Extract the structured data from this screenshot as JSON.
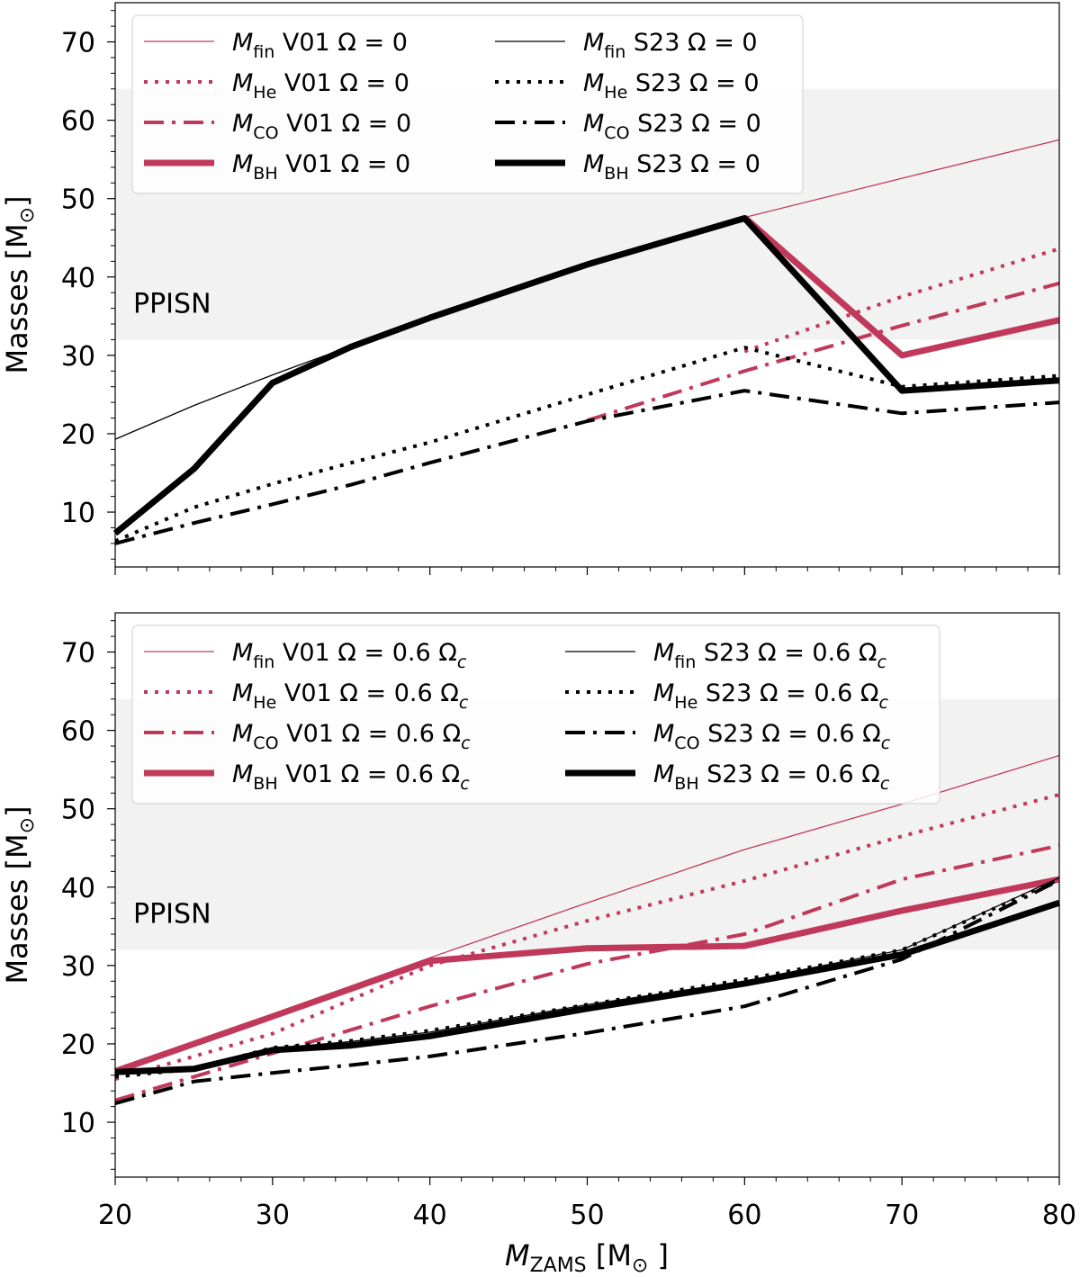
{
  "colors": {
    "v01": "#c0395a",
    "s23": "#000000",
    "band": "#f2f2f2"
  },
  "xaxis": {
    "label_main": "M",
    "label_sub": "ZAMS",
    "label_unit": " [M",
    "label_sun": "⊙",
    "label_close": " ]",
    "ticks": [
      "20",
      "30",
      "40",
      "50",
      "60",
      "70",
      "80"
    ],
    "xlim": [
      20,
      80
    ]
  },
  "chart_data": [
    {
      "type": "line",
      "panel": "top",
      "ylabel_main": "Masses [M",
      "ylabel_sun": "⊙",
      "ylabel_close": "]",
      "ylim": [
        3,
        75
      ],
      "yticks": [
        "10",
        "20",
        "30",
        "40",
        "50",
        "60",
        "70"
      ],
      "ytick_values": [
        10,
        20,
        30,
        40,
        50,
        60,
        70
      ],
      "band": {
        "label": "PPISN",
        "y0": 32,
        "y1": 64
      },
      "series": [
        {
          "name": "M_fin V01 Ω=0",
          "group": "V01",
          "kind": "fin",
          "style": "thin",
          "x": [
            60,
            70,
            80
          ],
          "y": [
            47.6,
            52.6,
            57.5
          ]
        },
        {
          "name": "M_He V01 Ω=0",
          "group": "V01",
          "kind": "He",
          "style": "dotted",
          "x": [
            60,
            70,
            80
          ],
          "y": [
            30.5,
            37.5,
            43.6
          ]
        },
        {
          "name": "M_CO V01 Ω=0",
          "group": "V01",
          "kind": "CO",
          "style": "dashdot",
          "x": [
            50,
            60,
            70,
            80
          ],
          "y": [
            21.7,
            28,
            33.8,
            39.2
          ]
        },
        {
          "name": "M_BH V01 Ω=0",
          "group": "V01",
          "kind": "BH",
          "style": "thick",
          "x": [
            60,
            70,
            80
          ],
          "y": [
            47.6,
            30,
            34.5
          ]
        },
        {
          "name": "M_fin S23 Ω=0",
          "group": "S23",
          "kind": "fin",
          "style": "thin",
          "x": [
            20,
            25,
            30,
            35,
            40,
            50,
            60
          ],
          "y": [
            19.3,
            23.6,
            27.5,
            31.2,
            34.8,
            41.7,
            47.6
          ]
        },
        {
          "name": "M_He S23 Ω=0",
          "group": "S23",
          "kind": "He",
          "style": "dotted",
          "x": [
            20,
            25,
            30,
            35,
            40,
            50,
            60,
            70,
            80
          ],
          "y": [
            6.3,
            10.6,
            13.6,
            16.3,
            18.9,
            25,
            31,
            26,
            27.4
          ]
        },
        {
          "name": "M_CO S23 Ω=0",
          "group": "S23",
          "kind": "CO",
          "style": "dashdot",
          "x": [
            20,
            25,
            30,
            35,
            40,
            50,
            60,
            70,
            80
          ],
          "y": [
            6,
            8.6,
            11,
            13.5,
            16.3,
            21.6,
            25.5,
            22.6,
            24
          ]
        },
        {
          "name": "M_BH S23 Ω=0",
          "group": "S23",
          "kind": "BH",
          "style": "thick",
          "x": [
            20,
            25,
            30,
            35,
            40,
            50,
            60,
            70,
            80
          ],
          "y": [
            7.3,
            15.5,
            26.5,
            31.1,
            34.8,
            41.6,
            47.5,
            25.5,
            26.8
          ]
        }
      ],
      "legend": {
        "left": [
          {
            "sub": "fin",
            "text": "V01 Ω = 0"
          },
          {
            "sub": "He",
            "text": "V01 Ω = 0"
          },
          {
            "sub": "CO",
            "text": "V01 Ω = 0"
          },
          {
            "sub": "BH",
            "text": "V01 Ω = 0"
          }
        ],
        "right": [
          {
            "sub": "fin",
            "text": "S23 Ω = 0"
          },
          {
            "sub": "He",
            "text": "S23 Ω = 0"
          },
          {
            "sub": "CO",
            "text": "S23 Ω = 0"
          },
          {
            "sub": "BH",
            "text": "S23 Ω = 0"
          }
        ]
      }
    },
    {
      "type": "line",
      "panel": "bottom",
      "ylabel_main": "Masses [M",
      "ylabel_sun": "⊙",
      "ylabel_close": "]",
      "ylim": [
        3,
        75
      ],
      "yticks": [
        "10",
        "20",
        "30",
        "40",
        "50",
        "60",
        "70"
      ],
      "ytick_values": [
        10,
        20,
        30,
        40,
        50,
        60,
        70
      ],
      "band": {
        "label": "PPISN",
        "y0": 32,
        "y1": 64
      },
      "series": [
        {
          "name": "M_fin V01 Ω=0.6Ωc",
          "group": "V01",
          "kind": "fin",
          "style": "thin",
          "x": [
            20,
            30,
            40,
            50,
            60,
            70,
            80
          ],
          "y": [
            16.5,
            23.8,
            31,
            38,
            44.8,
            50.6,
            56.8
          ]
        },
        {
          "name": "M_He V01 Ω=0.6Ωc",
          "group": "V01",
          "kind": "He",
          "style": "dotted",
          "x": [
            20,
            30,
            40,
            50,
            60,
            70,
            80
          ],
          "y": [
            15.5,
            21.3,
            30,
            35.7,
            40.8,
            46.5,
            51.8
          ]
        },
        {
          "name": "M_CO V01 Ω=0.6Ωc",
          "group": "V01",
          "kind": "CO",
          "style": "dashdot",
          "x": [
            20,
            30,
            40,
            50,
            60,
            70,
            80
          ],
          "y": [
            12.8,
            18.8,
            24.8,
            30.2,
            34,
            41,
            45.3
          ]
        },
        {
          "name": "M_BH V01 Ω=0.6Ωc",
          "group": "V01",
          "kind": "BH",
          "style": "thick",
          "x": [
            20,
            30,
            40,
            50,
            60,
            70,
            80
          ],
          "y": [
            16.5,
            23.5,
            30.6,
            32.2,
            32.5,
            37,
            41
          ]
        },
        {
          "name": "M_fin S23 Ω=0.6Ωc",
          "group": "S23",
          "kind": "fin",
          "style": "thin",
          "x": [
            20,
            25,
            30,
            35,
            40,
            50,
            60,
            70,
            80
          ],
          "y": [
            16.3,
            17,
            19.4,
            20.3,
            21.5,
            25,
            28,
            32,
            41.2
          ]
        },
        {
          "name": "M_He S23 Ω=0.6Ωc",
          "group": "S23",
          "kind": "He",
          "style": "dotted",
          "x": [
            20,
            25,
            30,
            35,
            40,
            50,
            60,
            70,
            80
          ],
          "y": [
            15.8,
            16.8,
            19.5,
            20.4,
            21.7,
            25,
            28.2,
            32,
            41
          ]
        },
        {
          "name": "M_CO S23 Ω=0.6Ωc",
          "group": "S23",
          "kind": "CO",
          "style": "dashdot",
          "x": [
            20,
            25,
            30,
            35,
            40,
            50,
            60,
            70,
            80
          ],
          "y": [
            12.4,
            15.2,
            16.3,
            17.3,
            18.4,
            21.4,
            24.8,
            30.8,
            40.9
          ]
        },
        {
          "name": "M_BH S23 Ω=0.6Ωc",
          "group": "S23",
          "kind": "BH",
          "style": "thick",
          "x": [
            20,
            25,
            30,
            35,
            40,
            50,
            60,
            70,
            80
          ],
          "y": [
            16.4,
            16.8,
            19.2,
            19.8,
            21,
            24.5,
            27.7,
            31.4,
            38
          ]
        }
      ],
      "legend": {
        "left": [
          {
            "sub": "fin",
            "text": "V01 Ω = 0.6 Ω"
          },
          {
            "sub": "He",
            "text": "V01 Ω = 0.6 Ω"
          },
          {
            "sub": "CO",
            "text": "V01 Ω = 0.6 Ω"
          },
          {
            "sub": "BH",
            "text": "V01 Ω = 0.6 Ω"
          }
        ],
        "right": [
          {
            "sub": "fin",
            "text": "S23 Ω = 0.6 Ω"
          },
          {
            "sub": "He",
            "text": "S23 Ω = 0.6 Ω"
          },
          {
            "sub": "CO",
            "text": "S23 Ω = 0.6 Ω"
          },
          {
            "sub": "BH",
            "text": "S23 Ω = 0.6 Ω"
          }
        ],
        "omega_sub": "c"
      }
    }
  ]
}
